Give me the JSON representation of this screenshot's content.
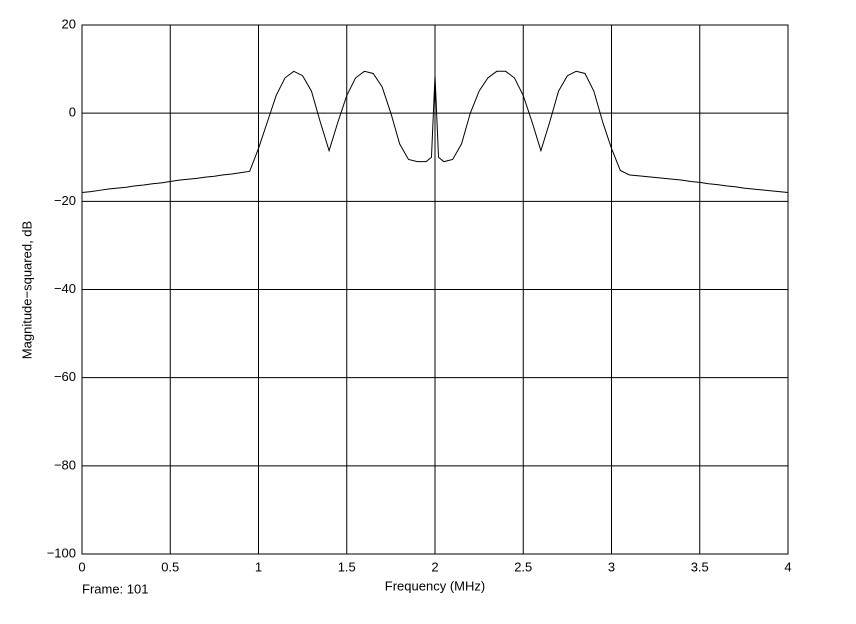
{
  "chart_data": {
    "type": "line",
    "xlabel": "Frequency (MHz)",
    "ylabel": "Magnitude−squared, dB",
    "annotation": "Frame: 101",
    "x": [
      0,
      0.05,
      0.1,
      0.15,
      0.2,
      0.25,
      0.3,
      0.35,
      0.4,
      0.45,
      0.5,
      0.55,
      0.6,
      0.65,
      0.7,
      0.75,
      0.8,
      0.85,
      0.9,
      0.95,
      1.0,
      1.05,
      1.1,
      1.15,
      1.2,
      1.25,
      1.3,
      1.35,
      1.4,
      1.45,
      1.5,
      1.55,
      1.6,
      1.65,
      1.7,
      1.75,
      1.8,
      1.85,
      1.9,
      1.95,
      1.98,
      2.0,
      2.02,
      2.05,
      2.1,
      2.15,
      2.2,
      2.25,
      2.3,
      2.35,
      2.4,
      2.45,
      2.5,
      2.55,
      2.6,
      2.65,
      2.7,
      2.75,
      2.8,
      2.85,
      2.9,
      2.95,
      3.0,
      3.05,
      3.1,
      3.15,
      3.2,
      3.25,
      3.3,
      3.35,
      3.4,
      3.45,
      3.5,
      3.55,
      3.6,
      3.65,
      3.7,
      3.75,
      3.8,
      3.85,
      3.9,
      3.95,
      4.0
    ],
    "series": [
      {
        "color": "#000000",
        "values": [
          -18,
          -17.8,
          -17.5,
          -17.2,
          -17,
          -16.8,
          -16.5,
          -16.3,
          -16,
          -15.8,
          -15.5,
          -15.2,
          -15,
          -14.8,
          -14.5,
          -14.3,
          -14,
          -13.8,
          -13.5,
          -13.2,
          -8,
          -2,
          4,
          8,
          9.5,
          8.5,
          5,
          -2,
          -8.5,
          -2,
          4,
          8,
          9.5,
          9,
          6,
          0,
          -7,
          -10.5,
          -11,
          -11,
          -10,
          8.5,
          -10,
          -11,
          -10.5,
          -7,
          0,
          5,
          8,
          9.5,
          9.5,
          8,
          4,
          -2,
          -8.5,
          -2,
          5,
          8.5,
          9.5,
          9,
          5,
          -2,
          -8,
          -13,
          -14,
          -14.2,
          -14.4,
          -14.6,
          -14.8,
          -15,
          -15.2,
          -15.5,
          -15.7,
          -16,
          -16.2,
          -16.5,
          -16.7,
          -17,
          -17.2,
          -17.4,
          -17.6,
          -17.8,
          -18
        ]
      }
    ],
    "xlim": [
      0,
      4
    ],
    "xticks": [
      0,
      0.5,
      1,
      1.5,
      2,
      2.5,
      3,
      3.5,
      4
    ],
    "ylim": [
      -100,
      20
    ],
    "yticks": [
      {
        "value": -100,
        "label": "−100"
      },
      {
        "value": -80,
        "label": "−80"
      },
      {
        "value": -60,
        "label": "−60"
      },
      {
        "value": -40,
        "label": "−40"
      },
      {
        "value": -20,
        "label": "−20"
      },
      0,
      20
    ],
    "grid": true
  }
}
